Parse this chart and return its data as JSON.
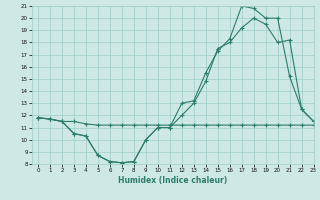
{
  "xlabel": "Humidex (Indice chaleur)",
  "line_color": "#2d7d6b",
  "bg_color": "#cde8e5",
  "grid_color": "#9ececa",
  "ylim": [
    8,
    21
  ],
  "xlim": [
    -0.5,
    23
  ],
  "yticks": [
    8,
    9,
    10,
    11,
    12,
    13,
    14,
    15,
    16,
    17,
    18,
    19,
    20,
    21
  ],
  "xticks": [
    0,
    1,
    2,
    3,
    4,
    5,
    6,
    7,
    8,
    9,
    10,
    11,
    12,
    13,
    14,
    15,
    16,
    17,
    18,
    19,
    20,
    21,
    22,
    23
  ],
  "line1_x": [
    0,
    1,
    2,
    3,
    4,
    5,
    6,
    7,
    8,
    9,
    10,
    11,
    12,
    13,
    14,
    15,
    16,
    17,
    18,
    19,
    20,
    21,
    22,
    23
  ],
  "line1_y": [
    11.8,
    11.7,
    11.5,
    10.5,
    10.3,
    8.7,
    8.2,
    8.1,
    8.2,
    10.0,
    11.0,
    11.0,
    13.0,
    13.2,
    15.5,
    17.3,
    18.3,
    21.0,
    20.8,
    20.0,
    20.0,
    15.2,
    12.5,
    11.5
  ],
  "line2_x": [
    0,
    1,
    2,
    3,
    4,
    5,
    6,
    7,
    8,
    9,
    10,
    11,
    12,
    13,
    14,
    15,
    16,
    17,
    18,
    19,
    20,
    21,
    22,
    23
  ],
  "line2_y": [
    11.8,
    11.7,
    11.5,
    10.5,
    10.3,
    8.7,
    8.2,
    8.1,
    8.2,
    10.0,
    11.0,
    11.0,
    12.0,
    13.0,
    14.8,
    17.5,
    18.0,
    19.2,
    20.0,
    19.5,
    18.0,
    18.2,
    12.5,
    11.5
  ],
  "line3_x": [
    0,
    1,
    2,
    3,
    4,
    5,
    6,
    7,
    8,
    9,
    10,
    11,
    12,
    13,
    14,
    15,
    16,
    17,
    18,
    19,
    20,
    21,
    22,
    23
  ],
  "line3_y": [
    11.8,
    11.7,
    11.5,
    11.5,
    11.3,
    11.2,
    11.2,
    11.2,
    11.2,
    11.2,
    11.2,
    11.2,
    11.2,
    11.2,
    11.2,
    11.2,
    11.2,
    11.2,
    11.2,
    11.2,
    11.2,
    11.2,
    11.2,
    11.2
  ]
}
